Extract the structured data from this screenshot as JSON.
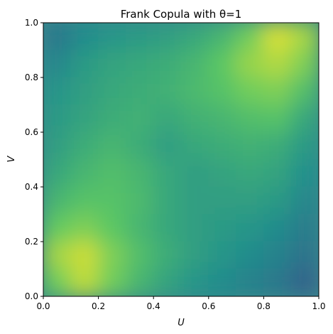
{
  "chart_data": {
    "type": "heatmap",
    "title": "Frank Copula with θ=1",
    "xlabel": "U",
    "ylabel": "V",
    "xlim": [
      0,
      1
    ],
    "ylim": [
      0,
      1
    ],
    "x_ticks": [
      "0.0",
      "0.2",
      "0.4",
      "0.6",
      "0.8",
      "1.0"
    ],
    "y_ticks": [
      "0.0",
      "0.2",
      "0.4",
      "0.6",
      "0.8",
      "1.0"
    ],
    "colormap": "viridis",
    "grid": false,
    "legend": "none",
    "x_centers": [
      0.05,
      0.15,
      0.25,
      0.35,
      0.45,
      0.55,
      0.65,
      0.75,
      0.85,
      0.95
    ],
    "y_centers": [
      0.05,
      0.15,
      0.25,
      0.35,
      0.45,
      0.55,
      0.65,
      0.75,
      0.85,
      0.95
    ],
    "density_rows_top_to_bottom": [
      [
        0.4,
        0.48,
        0.52,
        0.54,
        0.56,
        0.6,
        0.66,
        0.78,
        0.94,
        0.86
      ],
      [
        0.46,
        0.54,
        0.58,
        0.6,
        0.62,
        0.66,
        0.74,
        0.84,
        0.88,
        0.8
      ],
      [
        0.52,
        0.56,
        0.6,
        0.62,
        0.64,
        0.68,
        0.72,
        0.78,
        0.8,
        0.7
      ],
      [
        0.54,
        0.58,
        0.62,
        0.64,
        0.6,
        0.64,
        0.66,
        0.7,
        0.72,
        0.6
      ],
      [
        0.56,
        0.62,
        0.66,
        0.62,
        0.56,
        0.6,
        0.62,
        0.64,
        0.62,
        0.54
      ],
      [
        0.6,
        0.66,
        0.7,
        0.66,
        0.6,
        0.56,
        0.58,
        0.6,
        0.58,
        0.5
      ],
      [
        0.66,
        0.72,
        0.72,
        0.68,
        0.6,
        0.56,
        0.56,
        0.56,
        0.54,
        0.46
      ],
      [
        0.76,
        0.8,
        0.74,
        0.66,
        0.6,
        0.56,
        0.54,
        0.52,
        0.48,
        0.42
      ],
      [
        0.86,
        0.92,
        0.8,
        0.7,
        0.62,
        0.56,
        0.52,
        0.48,
        0.44,
        0.38
      ],
      [
        0.78,
        0.9,
        0.78,
        0.66,
        0.58,
        0.52,
        0.48,
        0.44,
        0.4,
        0.32
      ]
    ]
  },
  "colors": {
    "axis": "#000000",
    "background": "#ffffff"
  }
}
